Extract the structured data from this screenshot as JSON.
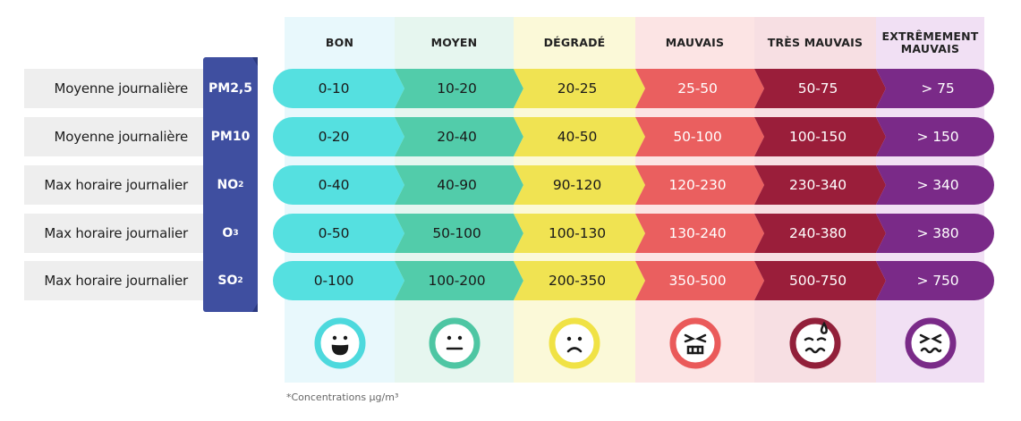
{
  "chart_data": {
    "type": "table",
    "footnote": "*Concentrations µg/m³",
    "categories": [
      {
        "label": "BON",
        "band_color": "#55e0e0",
        "bg_color": "#e8f8fc",
        "face_color": "#4dd9dd",
        "face": "happy-face-icon",
        "text_light": false
      },
      {
        "label": "MOYEN",
        "band_color": "#52ccaa",
        "bg_color": "#e6f6ef",
        "face_color": "#4ec6a3",
        "face": "neutral-face-icon",
        "text_light": false
      },
      {
        "label": "DÉGRADÉ",
        "band_color": "#f0e352",
        "bg_color": "#fbf9d8",
        "face_color": "#f0e245",
        "face": "sad-face-icon",
        "text_light": false
      },
      {
        "label": "MAUVAIS",
        "band_color": "#ea5f5f",
        "bg_color": "#fce4e4",
        "face_color": "#ea5a5a",
        "face": "angry-face-icon",
        "text_light": true
      },
      {
        "label": "TRÈS MAUVAIS",
        "band_color": "#9a1e3a",
        "bg_color": "#f7dfe3",
        "face_color": "#92203a",
        "face": "sweating-face-icon",
        "text_light": true
      },
      {
        "label": "EXTRÊMEMENT MAUVAIS",
        "band_color": "#7a2a88",
        "bg_color": "#f1e0f4",
        "face_color": "#7a2a88",
        "face": "sick-face-icon",
        "text_light": true
      }
    ],
    "rows": [
      {
        "label": "Moyenne journalière",
        "pollutant": "PM2,5",
        "sub": "",
        "values": [
          "0-10",
          "10-20",
          "20-25",
          "25-50",
          "50-75",
          "> 75"
        ]
      },
      {
        "label": "Moyenne journalière",
        "pollutant": "PM10",
        "sub": "",
        "values": [
          "0-20",
          "20-40",
          "40-50",
          "50-100",
          "100-150",
          "> 150"
        ]
      },
      {
        "label": "Max horaire journalier",
        "pollutant": "NO",
        "sub": "2",
        "values": [
          "0-40",
          "40-90",
          "90-120",
          "120-230",
          "230-340",
          "> 340"
        ]
      },
      {
        "label": "Max horaire journalier",
        "pollutant": "O",
        "sub": "3",
        "values": [
          "0-50",
          "50-100",
          "100-130",
          "130-240",
          "240-380",
          "> 380"
        ]
      },
      {
        "label": "Max horaire journalier",
        "pollutant": "SO",
        "sub": "2",
        "values": [
          "0-100",
          "100-200",
          "200-350",
          "350-500",
          "500-750",
          "> 750"
        ]
      }
    ]
  }
}
